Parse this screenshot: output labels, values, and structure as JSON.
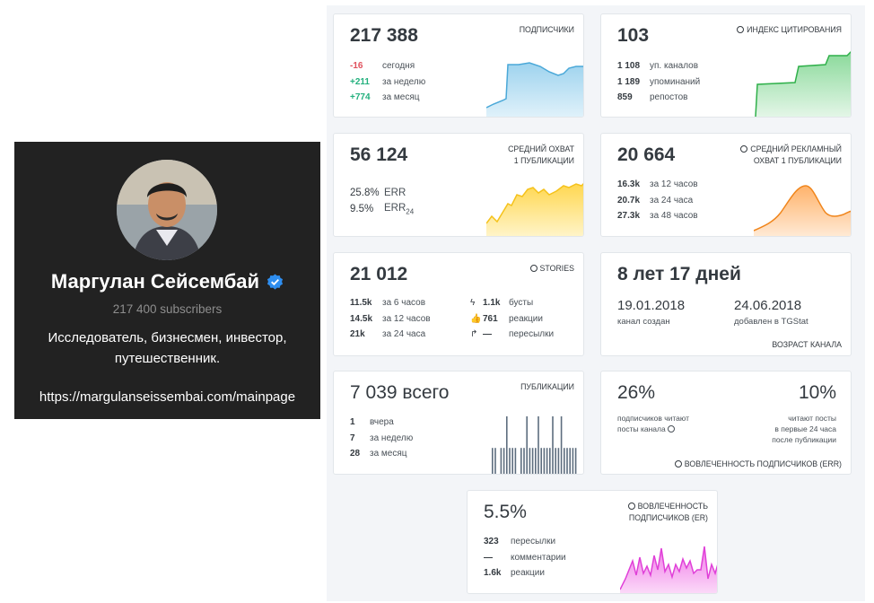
{
  "channel": {
    "name": "Маргулан Сейсембай",
    "subscribers": "217 400 subscribers",
    "description": "Исследователь, бизнесмен, инвестор, путешественник.",
    "link": "https://margulanseissembai.com/mainpage"
  },
  "stats": {
    "subscribers": {
      "label": "ПОДПИСЧИКИ",
      "value": "217 388",
      "rows": [
        {
          "value": "-16",
          "text": "сегодня"
        },
        {
          "value": "+211",
          "text": "за неделю"
        },
        {
          "value": "+774",
          "text": "за месяц"
        }
      ],
      "spark_color": "#4aa8d8"
    },
    "citation": {
      "label": "ИНДЕКС ЦИТИРОВАНИЯ",
      "value": "103",
      "rows": [
        {
          "value": "1 108",
          "text": "уп. каналов"
        },
        {
          "value": "1 189",
          "text": "упоминаний"
        },
        {
          "value": "859",
          "text": "репостов"
        }
      ],
      "spark_color": "#2fb04a"
    },
    "avg_reach": {
      "label_line1": "СРЕДНИЙ ОХВАТ",
      "label_line2": "1 ПУБЛИКАЦИИ",
      "value": "56 124",
      "err": "25.8%",
      "err_label": "ERR",
      "err24": "9.5%",
      "err24_label": "ERR",
      "err24_sub": "24",
      "spark_color": "#f5c21b"
    },
    "ad_reach": {
      "label_line1": "СРЕДНИЙ РЕКЛАМНЫЙ",
      "label_line2": "ОХВАТ 1 ПУБЛИКАЦИИ",
      "value": "20 664",
      "rows": [
        {
          "value": "16.3k",
          "text": "за 12 часов"
        },
        {
          "value": "20.7k",
          "text": "за 24 часа"
        },
        {
          "value": "27.3k",
          "text": "за 48 часов"
        }
      ],
      "spark_color": "#f0851b"
    },
    "stories": {
      "label": "STORIES",
      "value": "21 012",
      "rows_left": [
        {
          "value": "11.5k",
          "text": "за 6 часов"
        },
        {
          "value": "14.5k",
          "text": "за 12 часов"
        },
        {
          "value": "21k",
          "text": "за 24 часа"
        }
      ],
      "rows_right": [
        {
          "icon": "lightning-icon",
          "value": "1.1k",
          "text": "бусты"
        },
        {
          "icon": "thumbs-up-icon",
          "value": "761",
          "text": "реакции"
        },
        {
          "icon": "share-icon",
          "value": "—",
          "text": "пересылки"
        }
      ]
    },
    "age": {
      "value": "8 лет 17 дней",
      "created_date": "19.01.2018",
      "created_label": "канал создан",
      "added_date": "24.06.2018",
      "added_label": "добавлен в TGStat",
      "label": "ВОЗРАСТ КАНАЛА"
    },
    "posts": {
      "label": "ПУБЛИКАЦИИ",
      "value": "7 039",
      "value_suffix": "всего",
      "rows": [
        {
          "value": "1",
          "text": "вчера"
        },
        {
          "value": "7",
          "text": "за неделю"
        },
        {
          "value": "28",
          "text": "за месяц"
        }
      ],
      "bars": [
        0.45,
        0.45,
        0.0,
        0.45,
        0.45,
        1.0,
        0.45,
        0.45,
        0.45,
        0.0,
        0.45,
        0.45,
        1.0,
        0.45,
        0.45,
        0.45,
        1.0,
        0.45,
        0.45,
        0.45,
        0.45,
        1.0,
        0.45,
        0.45,
        1.0,
        0.45,
        0.45,
        0.45,
        0.45,
        0.45
      ],
      "bar_color": "#5d6d7e"
    },
    "engagement": {
      "pct1": "26%",
      "pct1_text_line1": "подписчиков читают",
      "pct1_text_line2": "посты канала",
      "pct2": "10%",
      "pct2_text_line1": "читают посты",
      "pct2_text_line2": "в первые 24 часа",
      "pct2_text_line3": "после публикации",
      "label": "ВОВЛЕЧЕННОСТЬ ПОДПИСЧИКОВ (ERR)"
    },
    "er": {
      "label_line1": "ВОВЛЕЧЕННОСТЬ",
      "label_line2": "ПОДПИСЧИКОВ (ER)",
      "value": "5.5%",
      "rows": [
        {
          "value": "323",
          "text": "пересылки"
        },
        {
          "value": "—",
          "text": "комментарии"
        },
        {
          "value": "1.6k",
          "text": "реакции"
        }
      ],
      "spark_color": "#e040d8"
    }
  }
}
